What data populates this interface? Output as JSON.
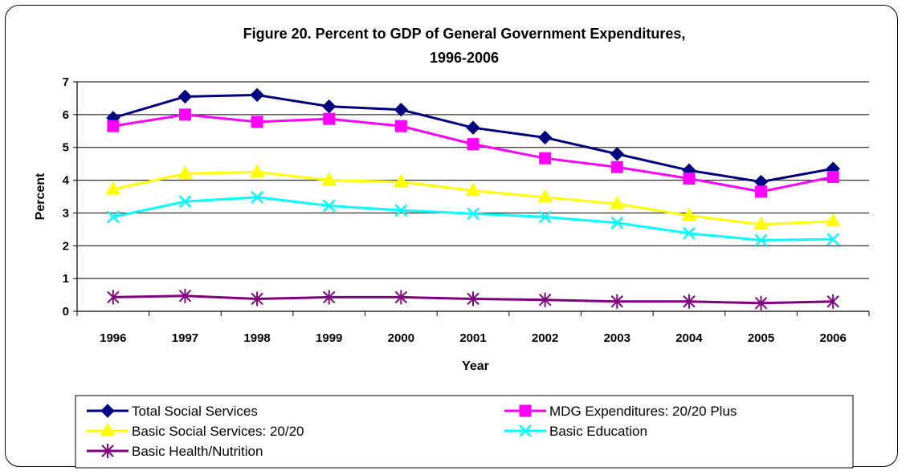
{
  "chart_data": {
    "type": "line",
    "title": "Figure 20. Percent to GDP of General Government Expenditures,",
    "subtitle": "1996-2006",
    "xlabel": "Year",
    "ylabel": "Percent",
    "categories": [
      "1996",
      "1997",
      "1998",
      "1999",
      "2000",
      "2001",
      "2002",
      "2003",
      "2004",
      "2005",
      "2006"
    ],
    "ylim": [
      0,
      7
    ],
    "yticks": [
      "0",
      "1",
      "2",
      "3",
      "4",
      "5",
      "6",
      "7"
    ],
    "grid": true,
    "legend_position": "bottom",
    "series": [
      {
        "name": "Total Social Services",
        "color": "#000080",
        "marker": "diamond",
        "values": [
          5.9,
          6.55,
          6.6,
          6.25,
          6.15,
          5.6,
          5.3,
          4.8,
          4.3,
          3.95,
          4.35
        ]
      },
      {
        "name": "MDG Expenditures: 20/20 Plus",
        "color": "#FF00FF",
        "marker": "square",
        "values": [
          5.65,
          6.0,
          5.78,
          5.87,
          5.65,
          5.1,
          4.67,
          4.4,
          4.05,
          3.65,
          4.1
        ]
      },
      {
        "name": "Basic Social Services: 20/20",
        "color": "#FFFF00",
        "marker": "triangle",
        "values": [
          3.72,
          4.2,
          4.25,
          4.0,
          3.95,
          3.68,
          3.48,
          3.28,
          2.92,
          2.65,
          2.75
        ]
      },
      {
        "name": "Basic Education",
        "color": "#00FFFF",
        "marker": "x",
        "values": [
          2.88,
          3.35,
          3.48,
          3.22,
          3.08,
          2.98,
          2.88,
          2.7,
          2.38,
          2.17,
          2.2
        ]
      },
      {
        "name": "Basic Health/Nutrition",
        "color": "#800080",
        "marker": "star",
        "values": [
          0.43,
          0.47,
          0.38,
          0.43,
          0.43,
          0.38,
          0.35,
          0.3,
          0.3,
          0.25,
          0.3
        ]
      }
    ]
  }
}
